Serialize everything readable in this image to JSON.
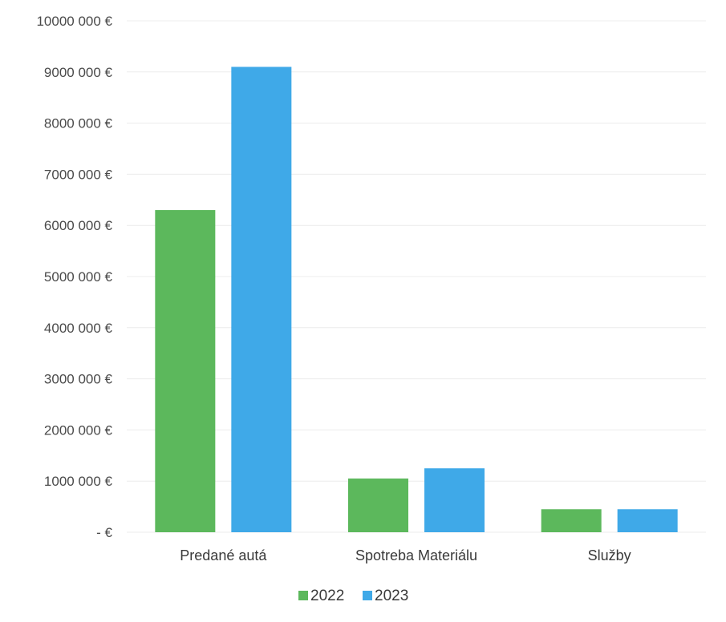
{
  "chart_data": {
    "type": "bar",
    "categories": [
      "Predané autá",
      "Spotreba Materiálu",
      "Služby"
    ],
    "series": [
      {
        "name": "2022",
        "values": [
          6300000,
          1050000,
          450000
        ],
        "color": "#5cb85c"
      },
      {
        "name": "2023",
        "values": [
          9100000,
          1250000,
          450000
        ],
        "color": "#3fa9e8"
      }
    ],
    "y_ticks": [
      {
        "value": 0,
        "label": "-   €"
      },
      {
        "value": 1000000,
        "label": "1000 000 €"
      },
      {
        "value": 2000000,
        "label": "2000 000 €"
      },
      {
        "value": 3000000,
        "label": "3000 000 €"
      },
      {
        "value": 4000000,
        "label": "4000 000 €"
      },
      {
        "value": 5000000,
        "label": "5000 000 €"
      },
      {
        "value": 6000000,
        "label": "6000 000 €"
      },
      {
        "value": 7000000,
        "label": "7000 000 €"
      },
      {
        "value": 8000000,
        "label": "8000 000 €"
      },
      {
        "value": 9000000,
        "label": "9000 000 €"
      },
      {
        "value": 10000000,
        "label": "10000 000 €"
      }
    ],
    "ylim": [
      0,
      10000000
    ],
    "grid": true,
    "legend_position": "bottom"
  }
}
